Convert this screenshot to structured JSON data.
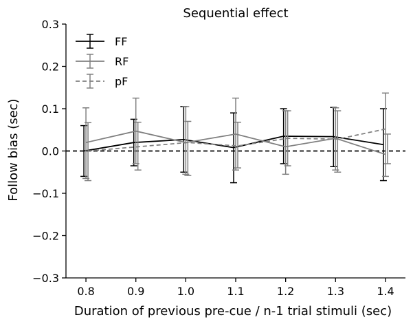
{
  "chart_data": {
    "type": "line",
    "title": "Sequential effect",
    "xlabel": "Duration of previous pre-cue / n-1 trial stimuli (sec)",
    "ylabel": "Follow bias (sec)",
    "xlim": [
      0.76,
      1.44
    ],
    "ylim": [
      -0.3,
      0.3
    ],
    "xticks": [
      0.8,
      0.9,
      1.0,
      1.1,
      1.2,
      1.3,
      1.4
    ],
    "xtick_labels": [
      "0.8",
      "0.9",
      "1.0",
      "1.1",
      "1.2",
      "1.3",
      "1.4"
    ],
    "yticks": [
      -0.3,
      -0.2,
      -0.1,
      0.0,
      0.1,
      0.2,
      0.3
    ],
    "ytick_labels": [
      "−0.3",
      "−0.2",
      "−0.1",
      "0.0",
      "0.1",
      "0.2",
      "0.3"
    ],
    "x": [
      0.8,
      0.9,
      1.0,
      1.1,
      1.2,
      1.3,
      1.4
    ],
    "reference_line": {
      "y": 0.0,
      "style": "dashed",
      "color": "#000000"
    },
    "legend": {
      "position": "top-left"
    },
    "series": [
      {
        "name": "FF",
        "color": "#000000",
        "style": "solid",
        "x_offset": 0.0,
        "values": [
          0.0,
          0.02,
          0.027,
          0.008,
          0.035,
          0.034,
          0.015
        ],
        "err_low": [
          -0.06,
          -0.035,
          -0.05,
          -0.075,
          -0.03,
          -0.037,
          -0.07
        ],
        "err_high": [
          0.06,
          0.075,
          0.105,
          0.09,
          0.1,
          0.103,
          0.1
        ]
      },
      {
        "name": "RF",
        "color": "#808080",
        "style": "solid",
        "x_offset": 0.0,
        "values": [
          0.02,
          0.047,
          0.02,
          0.04,
          0.01,
          0.03,
          -0.008
        ],
        "err_low": [
          -0.065,
          -0.03,
          -0.055,
          -0.045,
          -0.055,
          -0.045,
          -0.06
        ],
        "err_high": [
          0.102,
          0.125,
          0.105,
          0.125,
          0.095,
          0.102,
          0.137
        ]
      },
      {
        "name": "pF",
        "color": "#808080",
        "style": "dashed",
        "x_offset": 0.0,
        "values": [
          0.0,
          0.01,
          0.02,
          0.012,
          0.03,
          0.028,
          0.053
        ],
        "err_low": [
          -0.07,
          -0.045,
          -0.058,
          -0.04,
          -0.035,
          -0.05,
          -0.03
        ],
        "err_high": [
          0.067,
          0.068,
          0.07,
          0.068,
          0.095,
          0.095,
          0.04
        ]
      }
    ]
  }
}
